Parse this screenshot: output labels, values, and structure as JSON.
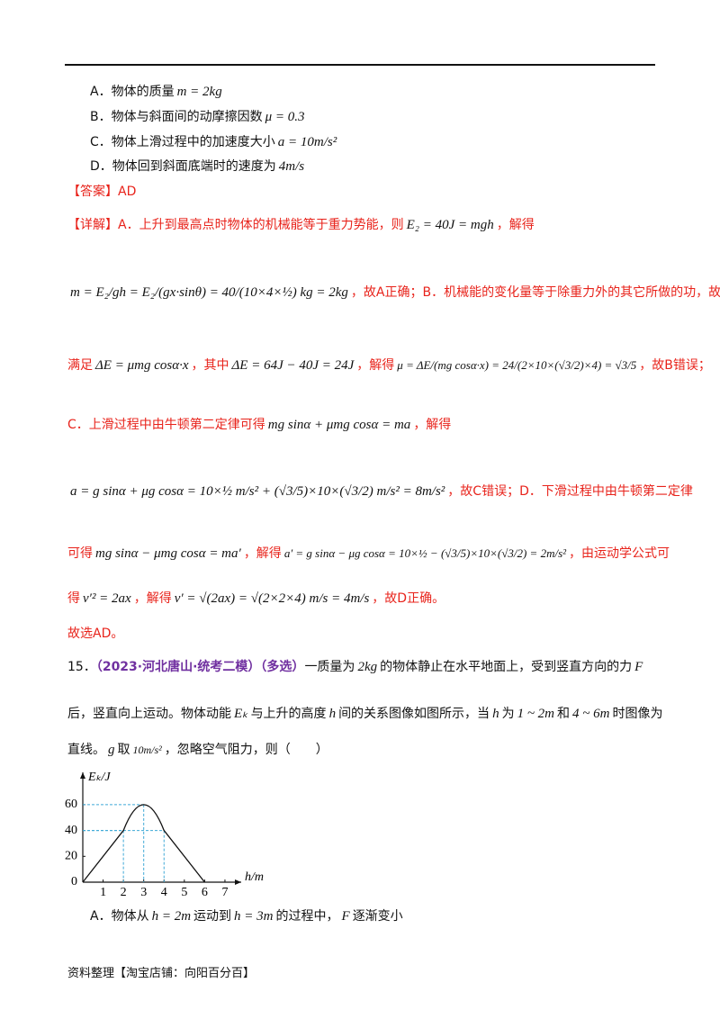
{
  "q14": {
    "options": [
      {
        "label": "A．物体的质量",
        "math": "m = 2kg"
      },
      {
        "label": "B．物体与斜面间的动摩擦因数",
        "math": "μ = 0.3"
      },
      {
        "label": "C．物体上滑过程中的加速度大小",
        "math": "a = 10m/s²"
      },
      {
        "label": "D．物体回到斜面底端时的速度为",
        "math": "4m/s"
      }
    ],
    "answer": "【答案】AD"
  },
  "explanation": {
    "lines": [
      [
        "【详解】A．上升到最高点时物体的机械能等于重力势能，则",
        "E₂ = 40J = mgh",
        "，解得"
      ],
      [
        "m = E₂/gh = E₂/(gx·sinθ) = 40/(10×4×½) kg = 2kg",
        "，故A正确；B．机械能的变化量等于除重力外的其它所做的功，故"
      ],
      [
        "满足",
        "ΔE = μmg cosα·x",
        "，其中",
        "ΔE = 64J − 40J = 24J",
        "，解得",
        "μ = ΔE/(mg cosα·x) = 24/(2×10×(√3/2)×4) = √3/5",
        "，故B错误；"
      ],
      [
        "C．上滑过程中由牛顿第二定律可得",
        "mg sinα + μmg cosα = ma",
        "，解得"
      ],
      [
        "a = g sinα + μg cosα = 10×½ m/s² + (√3/5)×10×(√3/2) m/s² = 8m/s²",
        "，故C错误；D．下滑过程中由牛顿第二定律"
      ],
      [
        "可得",
        "mg sinα − μmg cosα = ma′",
        "，解得",
        "a′ = g sinα − μg cosα = 10×½ − (√3/5)×10×(√3/2) = 2m/s²",
        "，由运动学公式可"
      ],
      [
        "得",
        "v′² = 2ax",
        "，解得",
        "v′ = √(2ax) = √(2×2×4) m/s = 4m/s",
        "，故D正确。"
      ],
      [
        "故选AD。"
      ]
    ]
  },
  "q15": {
    "number": "15．",
    "source": "（2023·河北唐山·统考二模）（多选）",
    "lines": [
      [
        "一质量为",
        "2kg",
        "的物体静止在水平地面上，受到竖直方向的力",
        "F"
      ],
      [
        "后，竖直向上运动。物体动能",
        "Eₖ",
        "与上升的高度",
        "h",
        "间的关系图像如图所示，当",
        "h",
        "为",
        "1 ~ 2m",
        "和",
        "4 ~ 6m",
        "时图像为"
      ],
      [
        "直线。",
        "g",
        "取",
        "10m/s²",
        "，忽略空气阻力，则（　　）"
      ]
    ],
    "figure": {
      "type": "line",
      "x_label": "h/m",
      "y_label": "Eₖ/J",
      "xlim": [
        0,
        7.8
      ],
      "ylim": [
        0,
        85
      ],
      "xticks": [
        1,
        2,
        3,
        4,
        5,
        6,
        7
      ],
      "yticks": [
        0,
        20,
        40,
        60
      ],
      "x": [
        0,
        2,
        3,
        4,
        6
      ],
      "y": [
        0,
        40,
        60,
        40,
        0
      ]
    },
    "option_a": [
      "A．物体从",
      "h = 2m",
      "运动到",
      "h = 3m",
      "的过程中，",
      "F",
      "逐渐变小"
    ]
  },
  "footer": "资料整理【淘宝店铺：向阳百分百】"
}
